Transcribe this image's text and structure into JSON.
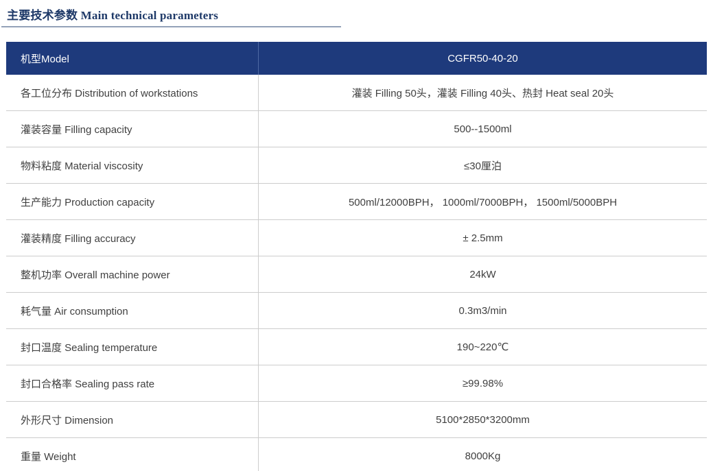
{
  "page": {
    "title": "主要技术参数 Main technical parameters"
  },
  "table": {
    "header": {
      "label": "机型Model",
      "value": "CGFR50-40-20"
    },
    "rows": [
      {
        "label": "各工位分布 Distribution of workstations",
        "value": "灌装 Filling 50头，灌装 Filling 40头、热封 Heat seal 20头"
      },
      {
        "label": "灌装容量 Filling capacity",
        "value": "500--1500ml"
      },
      {
        "label": "物料粘度 Material viscosity",
        "value": "≤30厘泊"
      },
      {
        "label": "生产能力 Production capacity",
        "value": "500ml/12000BPH， 1000ml/7000BPH， 1500ml/5000BPH"
      },
      {
        "label": "灌装精度 Filling accuracy",
        "value": "± 2.5mm"
      },
      {
        "label": "整机功率 Overall machine power",
        "value": "24kW"
      },
      {
        "label": "耗气量 Air consumption",
        "value": "0.3m3/min"
      },
      {
        "label": "封口温度 Sealing temperature",
        "value": "190~220℃"
      },
      {
        "label": "封口合格率 Sealing pass rate",
        "value": "≥99.98%"
      },
      {
        "label": "外形尺寸 Dimension",
        "value": "5100*2850*3200mm"
      },
      {
        "label": "重量 Weight",
        "value": "8000Kg"
      }
    ],
    "colors": {
      "header_background": "#1e3a7c",
      "header_text": "#ffffff",
      "header_divider": "#4f69a4",
      "title_text": "#1e3968",
      "title_underline": "#93a1b8",
      "body_text": "#404040",
      "row_divider": "#cccccc",
      "bottom_border": "#9b9b9b"
    }
  }
}
